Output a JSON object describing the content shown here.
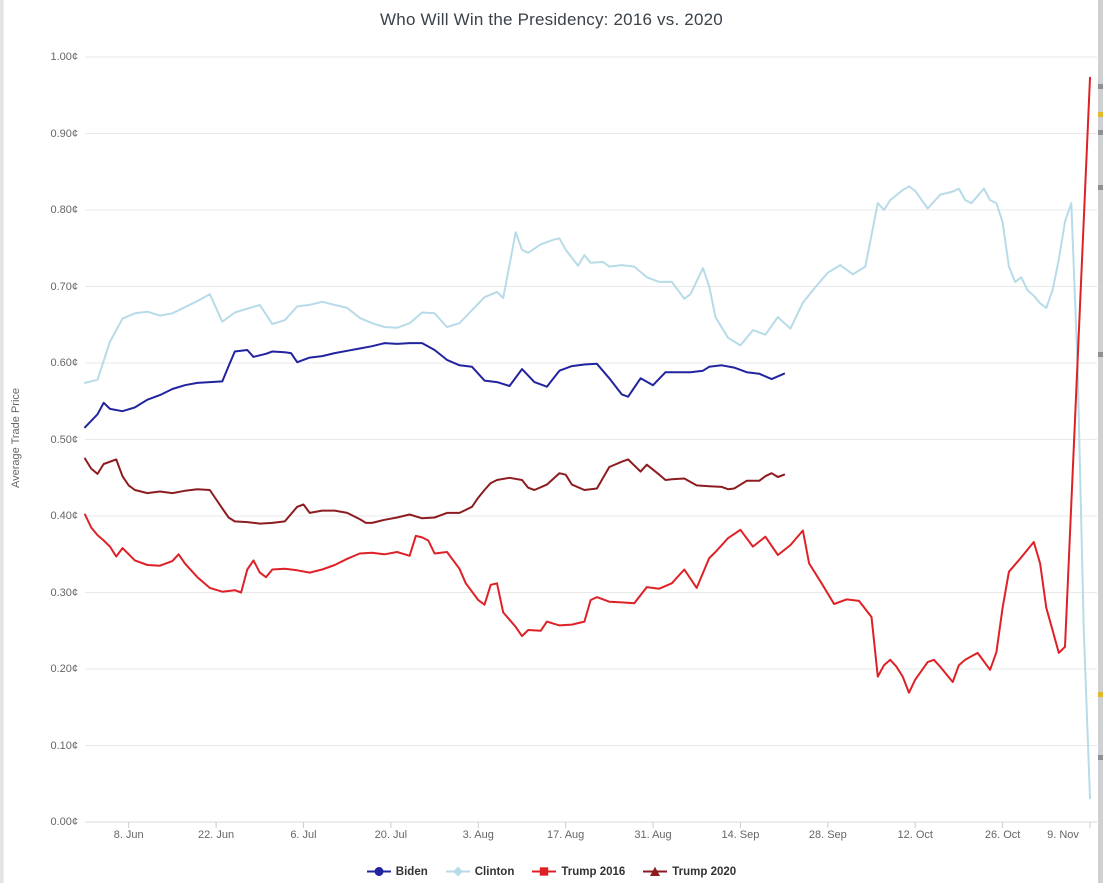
{
  "chart_data": {
    "type": "line",
    "title": "Who Will Win the Presidency: 2016 vs. 2020",
    "xlabel": "",
    "ylabel": "Average Trade Price",
    "ylim": [
      0,
      1
    ],
    "x_unit": "days since 1 June (2016 and 2020 seasons overlaid by calendar day)",
    "xlim_days": [
      0,
      161
    ],
    "grid": "horizontal",
    "legend_position": "bottom",
    "y_ticks": [
      {
        "label": "0.00¢",
        "value": 0.0
      },
      {
        "label": "0.10¢",
        "value": 0.1
      },
      {
        "label": "0.20¢",
        "value": 0.2
      },
      {
        "label": "0.30¢",
        "value": 0.3
      },
      {
        "label": "0.40¢",
        "value": 0.4
      },
      {
        "label": "0.50¢",
        "value": 0.5
      },
      {
        "label": "0.60¢",
        "value": 0.6
      },
      {
        "label": "0.70¢",
        "value": 0.7
      },
      {
        "label": "0.80¢",
        "value": 0.8
      },
      {
        "label": "0.90¢",
        "value": 0.9
      },
      {
        "label": "1.00¢",
        "value": 1.0
      }
    ],
    "x_ticks": [
      {
        "label": "8. Jun",
        "day": 7
      },
      {
        "label": "22. Jun",
        "day": 21
      },
      {
        "label": "6. Jul",
        "day": 35
      },
      {
        "label": "20. Jul",
        "day": 49
      },
      {
        "label": "3. Aug",
        "day": 63
      },
      {
        "label": "17. Aug",
        "day": 77
      },
      {
        "label": "31. Aug",
        "day": 91
      },
      {
        "label": "14. Sep",
        "day": 105
      },
      {
        "label": "28. Sep",
        "day": 119
      },
      {
        "label": "12. Oct",
        "day": 133
      },
      {
        "label": "26. Oct",
        "day": 147
      },
      {
        "label": "9. Nov",
        "day": 161
      }
    ],
    "series": [
      {
        "name": "Biden",
        "slug": "biden",
        "color": "#21249e",
        "marker": "circle",
        "days": [
          0,
          2,
          3,
          4,
          6,
          8,
          10,
          12,
          14,
          16,
          18,
          20,
          22,
          23,
          24,
          26,
          27,
          29,
          30,
          32,
          33,
          34,
          36,
          38,
          40,
          42,
          44,
          46,
          48,
          50,
          52,
          54,
          56,
          58,
          60,
          62,
          64,
          66,
          68,
          70,
          72,
          74,
          76,
          78,
          80,
          82,
          84,
          86,
          87,
          89,
          91,
          93,
          95,
          97,
          99,
          100,
          102,
          104,
          106,
          108,
          110,
          112
        ],
        "values": [
          0.516,
          0.533,
          0.548,
          0.54,
          0.537,
          0.542,
          0.552,
          0.558,
          0.566,
          0.571,
          0.574,
          0.575,
          0.576,
          0.596,
          0.615,
          0.617,
          0.608,
          0.612,
          0.615,
          0.614,
          0.613,
          0.601,
          0.607,
          0.609,
          0.613,
          0.616,
          0.619,
          0.622,
          0.626,
          0.625,
          0.626,
          0.626,
          0.617,
          0.604,
          0.597,
          0.595,
          0.577,
          0.575,
          0.57,
          0.592,
          0.575,
          0.569,
          0.59,
          0.596,
          0.598,
          0.599,
          0.58,
          0.559,
          0.556,
          0.58,
          0.571,
          0.588,
          0.588,
          0.588,
          0.59,
          0.595,
          0.597,
          0.594,
          0.588,
          0.586,
          0.579,
          0.586
        ]
      },
      {
        "name": "Clinton",
        "slug": "clinton",
        "color": "#b7dbe8",
        "marker": "diamond",
        "days": [
          0,
          2,
          4,
          6,
          8,
          10,
          12,
          14,
          16,
          18,
          20,
          22,
          24,
          26,
          28,
          30,
          32,
          34,
          36,
          38,
          40,
          42,
          44,
          46,
          48,
          50,
          52,
          54,
          56,
          58,
          60,
          62,
          64,
          66,
          67,
          69,
          70,
          71,
          73,
          75,
          76,
          77,
          79,
          80,
          81,
          83,
          84,
          86,
          88,
          90,
          92,
          94,
          96,
          97,
          99,
          100,
          101,
          103,
          105,
          107,
          109,
          111,
          113,
          115,
          117,
          119,
          121,
          123,
          125,
          127,
          128,
          129,
          131,
          132,
          133,
          135,
          137,
          139,
          140,
          141,
          142,
          144,
          145,
          146,
          147,
          148,
          149,
          150,
          151,
          152,
          153,
          154,
          155,
          156,
          157,
          158,
          159,
          160,
          161
        ],
        "values": [
          0.574,
          0.578,
          0.628,
          0.658,
          0.665,
          0.667,
          0.662,
          0.665,
          0.673,
          0.681,
          0.69,
          0.654,
          0.666,
          0.671,
          0.676,
          0.651,
          0.656,
          0.674,
          0.676,
          0.68,
          0.676,
          0.672,
          0.659,
          0.652,
          0.647,
          0.646,
          0.652,
          0.666,
          0.665,
          0.647,
          0.652,
          0.669,
          0.686,
          0.693,
          0.685,
          0.771,
          0.748,
          0.744,
          0.755,
          0.761,
          0.763,
          0.748,
          0.727,
          0.741,
          0.731,
          0.732,
          0.726,
          0.728,
          0.726,
          0.712,
          0.706,
          0.706,
          0.684,
          0.69,
          0.724,
          0.7,
          0.66,
          0.633,
          0.623,
          0.643,
          0.637,
          0.66,
          0.645,
          0.679,
          0.699,
          0.718,
          0.728,
          0.716,
          0.726,
          0.809,
          0.8,
          0.813,
          0.826,
          0.831,
          0.825,
          0.802,
          0.82,
          0.824,
          0.828,
          0.813,
          0.809,
          0.828,
          0.813,
          0.809,
          0.784,
          0.726,
          0.706,
          0.712,
          0.695,
          0.688,
          0.678,
          0.672,
          0.695,
          0.735,
          0.785,
          0.809,
          0.6,
          0.25,
          0.031
        ]
      },
      {
        "name": "Trump 2016",
        "slug": "trump-2016",
        "color": "#dd2127",
        "marker": "square",
        "days": [
          0,
          1,
          2,
          3,
          4,
          5,
          6,
          8,
          10,
          12,
          14,
          15,
          16,
          18,
          20,
          22,
          24,
          25,
          26,
          27,
          28,
          29,
          30,
          32,
          34,
          36,
          38,
          40,
          42,
          44,
          46,
          48,
          50,
          52,
          53,
          54,
          55,
          56,
          58,
          60,
          61,
          63,
          64,
          65,
          66,
          67,
          69,
          70,
          71,
          73,
          74,
          76,
          78,
          80,
          81,
          82,
          84,
          86,
          88,
          90,
          92,
          94,
          96,
          98,
          100,
          101,
          103,
          105,
          107,
          109,
          111,
          113,
          115,
          116,
          118,
          120,
          122,
          124,
          126,
          127,
          128,
          129,
          130,
          131,
          132,
          133,
          135,
          136,
          137,
          139,
          140,
          141,
          143,
          144,
          145,
          146,
          147,
          148,
          150,
          152,
          153,
          154,
          155,
          156,
          157,
          159,
          161
        ],
        "values": [
          0.402,
          0.385,
          0.375,
          0.368,
          0.36,
          0.347,
          0.358,
          0.342,
          0.336,
          0.335,
          0.341,
          0.35,
          0.338,
          0.32,
          0.306,
          0.301,
          0.303,
          0.3,
          0.33,
          0.342,
          0.326,
          0.32,
          0.33,
          0.331,
          0.329,
          0.326,
          0.33,
          0.336,
          0.344,
          0.351,
          0.352,
          0.35,
          0.353,
          0.348,
          0.374,
          0.372,
          0.368,
          0.351,
          0.353,
          0.331,
          0.312,
          0.29,
          0.284,
          0.31,
          0.312,
          0.274,
          0.255,
          0.243,
          0.251,
          0.25,
          0.262,
          0.257,
          0.258,
          0.262,
          0.29,
          0.294,
          0.288,
          0.287,
          0.286,
          0.307,
          0.305,
          0.312,
          0.33,
          0.306,
          0.345,
          0.353,
          0.371,
          0.382,
          0.36,
          0.373,
          0.349,
          0.362,
          0.381,
          0.338,
          0.312,
          0.285,
          0.291,
          0.289,
          0.268,
          0.19,
          0.205,
          0.212,
          0.203,
          0.19,
          0.169,
          0.186,
          0.209,
          0.212,
          0.203,
          0.183,
          0.205,
          0.212,
          0.221,
          0.21,
          0.199,
          0.222,
          0.28,
          0.327,
          0.346,
          0.366,
          0.338,
          0.28,
          0.251,
          0.221,
          0.229,
          0.6,
          0.973
        ]
      },
      {
        "name": "Trump 2020",
        "slug": "trump-2020",
        "color": "#8c1c20",
        "marker": "triangle",
        "days": [
          0,
          1,
          2,
          3,
          5,
          6,
          7,
          8,
          10,
          12,
          14,
          16,
          18,
          20,
          22,
          23,
          24,
          26,
          28,
          30,
          32,
          34,
          35,
          36,
          38,
          40,
          42,
          44,
          45,
          46,
          48,
          50,
          52,
          54,
          56,
          58,
          60,
          61,
          62,
          63,
          64,
          65,
          66,
          68,
          70,
          71,
          72,
          74,
          76,
          77,
          78,
          80,
          82,
          83,
          84,
          86,
          87,
          89,
          90,
          92,
          93,
          94,
          96,
          98,
          100,
          102,
          103,
          104,
          106,
          108,
          109,
          110,
          111,
          112
        ],
        "values": [
          0.475,
          0.462,
          0.455,
          0.468,
          0.474,
          0.452,
          0.44,
          0.434,
          0.43,
          0.432,
          0.43,
          0.433,
          0.435,
          0.434,
          0.41,
          0.398,
          0.393,
          0.392,
          0.39,
          0.391,
          0.393,
          0.412,
          0.415,
          0.404,
          0.407,
          0.407,
          0.404,
          0.396,
          0.391,
          0.391,
          0.395,
          0.398,
          0.402,
          0.397,
          0.398,
          0.404,
          0.404,
          0.408,
          0.412,
          0.424,
          0.434,
          0.443,
          0.447,
          0.45,
          0.447,
          0.437,
          0.434,
          0.441,
          0.456,
          0.454,
          0.441,
          0.434,
          0.436,
          0.45,
          0.464,
          0.471,
          0.474,
          0.458,
          0.467,
          0.454,
          0.447,
          0.448,
          0.449,
          0.44,
          0.439,
          0.438,
          0.435,
          0.436,
          0.446,
          0.446,
          0.452,
          0.456,
          0.451,
          0.454
        ]
      }
    ],
    "colors": {
      "grid": "#e9e9e9",
      "axis_line": "#d8d8d8",
      "tick_mark": "#cccccc",
      "axis_text": "#666666",
      "title_text": "#3a424a",
      "legend_text": "#333333"
    }
  }
}
